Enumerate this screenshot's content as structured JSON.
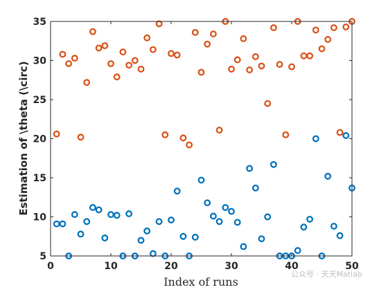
{
  "chart_data": {
    "type": "scatter",
    "xlabel": "Index of runs",
    "ylabel": "Estimation of \\theta (\\circ)",
    "xlim": [
      0,
      50
    ],
    "ylim": [
      5,
      35
    ],
    "xticks": [
      0,
      10,
      20,
      30,
      40,
      50
    ],
    "yticks": [
      5,
      10,
      15,
      20,
      25,
      30,
      35
    ],
    "grid": false,
    "box": true,
    "marker": "open-circle",
    "series": [
      {
        "color": "#D95319",
        "x": [
          1,
          2,
          3,
          4,
          5,
          6,
          7,
          8,
          9,
          10,
          11,
          12,
          13,
          14,
          15,
          16,
          17,
          18,
          19,
          20,
          21,
          22,
          23,
          24,
          25,
          26,
          27,
          28,
          29,
          30,
          31,
          32,
          33,
          34,
          35,
          36,
          37,
          38,
          39,
          40,
          41,
          42,
          43,
          44,
          45,
          46,
          47,
          48,
          49,
          50
        ],
        "y": [
          20.6,
          30.8,
          29.6,
          30.3,
          20.2,
          27.2,
          33.7,
          31.6,
          31.9,
          29.6,
          27.9,
          31.1,
          29.4,
          30.0,
          28.9,
          32.9,
          31.4,
          34.7,
          20.5,
          30.9,
          30.7,
          20.1,
          19.2,
          33.6,
          28.5,
          32.1,
          33.4,
          21.1,
          35.0,
          28.9,
          30.1,
          32.8,
          28.8,
          30.5,
          29.3,
          24.5,
          34.2,
          29.5,
          20.5,
          29.2,
          35.0,
          30.6,
          30.6,
          33.9,
          31.5,
          32.7,
          34.2,
          20.8,
          34.3,
          35.0
        ]
      },
      {
        "color": "#0072BD",
        "x": [
          1,
          2,
          3,
          4,
          5,
          6,
          7,
          8,
          9,
          10,
          11,
          12,
          13,
          14,
          15,
          16,
          17,
          18,
          19,
          20,
          21,
          22,
          23,
          24,
          25,
          26,
          27,
          28,
          29,
          30,
          31,
          32,
          33,
          34,
          35,
          36,
          37,
          38,
          39,
          40,
          41,
          42,
          43,
          44,
          45,
          46,
          47,
          48,
          49,
          50
        ],
        "y": [
          9.1,
          9.1,
          5.0,
          10.3,
          7.8,
          9.4,
          11.2,
          10.9,
          7.3,
          10.3,
          10.2,
          5.0,
          10.4,
          5.0,
          7.0,
          8.2,
          5.3,
          9.4,
          5.0,
          9.6,
          13.3,
          7.5,
          5.0,
          7.4,
          14.7,
          11.8,
          10.1,
          9.4,
          11.2,
          10.7,
          9.3,
          6.2,
          16.2,
          13.7,
          7.2,
          10.0,
          16.7,
          5.0,
          5.0,
          5.0,
          5.7,
          8.7,
          9.7,
          20.0,
          5.0,
          15.2,
          8.8,
          7.6,
          20.4,
          13.7
        ]
      }
    ]
  },
  "watermark": "公众号 · 天天Matlab"
}
